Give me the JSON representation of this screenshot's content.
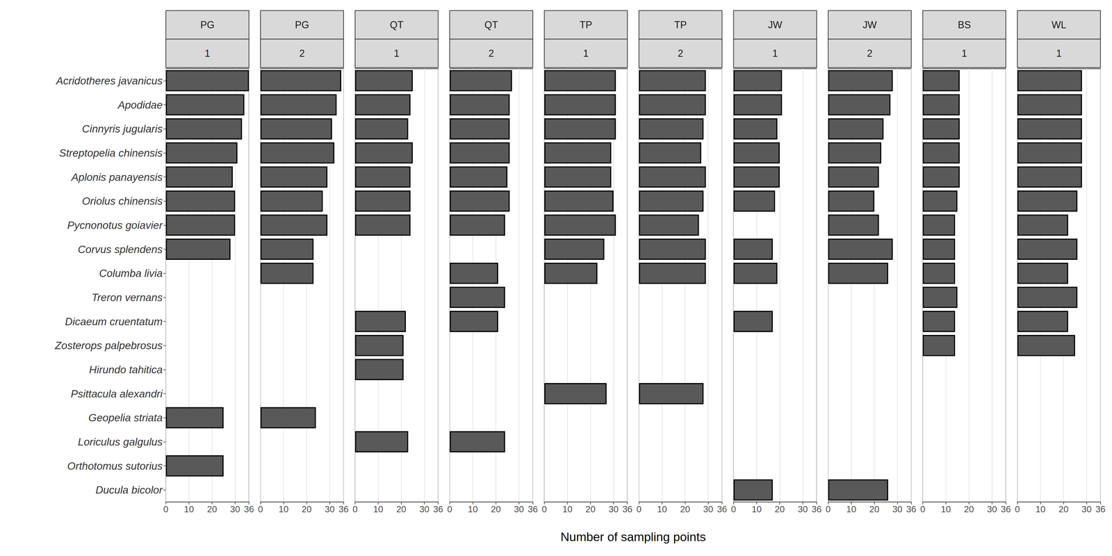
{
  "chart_data": {
    "type": "bar",
    "orientation": "horizontal",
    "grid": true,
    "color": "#595959",
    "x_label": "Number of sampling points",
    "xlim": [
      0,
      36
    ],
    "xticks": [
      0,
      10,
      20,
      30
    ],
    "categories": [
      "Acridotheres javanicus",
      "Apodidae",
      "Cinnyris jugularis",
      "Streptopelia chinensis",
      "Aplonis panayensis",
      "Oriolus chinensis",
      "Pycnonotus goiavier",
      "Corvus splendens",
      "Columba livia",
      "Treron vernans",
      "Dicaeum cruentatum",
      "Zosterops palpebrosus",
      "Hirundo tahitica",
      "Psittacula alexandri",
      "Geopelia striata",
      "Loriculus galgulus",
      "Orthotomus sutorius",
      "Ducula bicolor"
    ],
    "panels": [
      {
        "title": "PG",
        "subtitle": "1",
        "values": [
          36,
          34,
          33,
          31,
          29,
          30,
          30,
          28,
          null,
          null,
          null,
          null,
          null,
          null,
          25,
          null,
          25,
          null
        ]
      },
      {
        "title": "PG",
        "subtitle": "2",
        "values": [
          35,
          33,
          31,
          32,
          29,
          27,
          29,
          23,
          23,
          null,
          null,
          null,
          null,
          null,
          24,
          null,
          null,
          null
        ]
      },
      {
        "title": "QT",
        "subtitle": "1",
        "values": [
          25,
          24,
          23,
          25,
          24,
          24,
          24,
          null,
          null,
          null,
          22,
          21,
          21,
          null,
          null,
          23,
          null,
          null
        ]
      },
      {
        "title": "QT",
        "subtitle": "2",
        "values": [
          27,
          26,
          26,
          26,
          25,
          26,
          24,
          null,
          21,
          24,
          21,
          null,
          null,
          null,
          null,
          24,
          null,
          null
        ]
      },
      {
        "title": "TP",
        "subtitle": "1",
        "values": [
          31,
          31,
          31,
          29,
          29,
          30,
          31,
          26,
          23,
          null,
          null,
          null,
          null,
          27,
          null,
          null,
          null,
          null
        ]
      },
      {
        "title": "TP",
        "subtitle": "2",
        "values": [
          29,
          29,
          28,
          27,
          29,
          28,
          26,
          29,
          29,
          null,
          null,
          null,
          null,
          28,
          null,
          null,
          null,
          null
        ]
      },
      {
        "title": "JW",
        "subtitle": "1",
        "values": [
          21,
          21,
          19,
          20,
          20,
          18,
          null,
          17,
          19,
          null,
          17,
          null,
          null,
          null,
          null,
          null,
          null,
          17
        ]
      },
      {
        "title": "JW",
        "subtitle": "2",
        "values": [
          28,
          27,
          24,
          23,
          22,
          20,
          22,
          28,
          26,
          null,
          null,
          null,
          null,
          null,
          null,
          null,
          null,
          26
        ]
      },
      {
        "title": "BS",
        "subtitle": "1",
        "values": [
          16,
          16,
          16,
          16,
          16,
          15,
          14,
          14,
          14,
          15,
          14,
          14,
          null,
          null,
          null,
          null,
          null,
          null
        ]
      },
      {
        "title": "WL",
        "subtitle": "1",
        "values": [
          28,
          28,
          28,
          28,
          28,
          26,
          22,
          26,
          22,
          26,
          22,
          25,
          null,
          null,
          null,
          null,
          null,
          null
        ]
      }
    ]
  }
}
